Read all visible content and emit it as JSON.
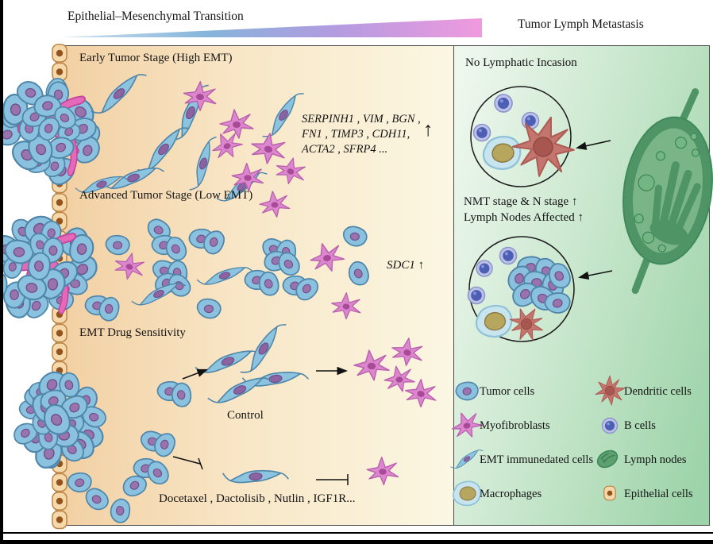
{
  "figure": {
    "emt_axis_title": "Epithelial–Mesenchymal Transition",
    "right_title": "Tumor Lymph Metastasis"
  },
  "left_panel": {
    "early_stage_title": "Early Tumor Stage (High EMT)",
    "gene_lines": [
      "SERPINH1 , VIM , BGN ,",
      "FN1 , TIMP3 , CDH11,",
      "ACTA2 , SFRP4 ..."
    ],
    "gene_arrow": "↑",
    "advanced_stage_title": "Advanced Tumor Stage (Low EMT)",
    "sdc1_gene": "SDC1",
    "sdc1_arrow": "↑",
    "drug_section_title": "EMT Drug Sensitivity",
    "control_label": "Control",
    "drugs_label": "Docetaxel ,  Dactolisib ,  Nutlin ,  IGF1R..."
  },
  "right_panel": {
    "no_invasion_label": "No Lymphatic Incasion",
    "stage_note_line1": "NMT stage & N stage ↑",
    "stage_note_line2": "Lymph Nodes Affected ↑",
    "legend_col1": [
      {
        "label": "Tumor cells"
      },
      {
        "label": "Myofibroblasts"
      },
      {
        "label": "EMT immunedated cells"
      },
      {
        "label": "Macrophages"
      }
    ],
    "legend_col2": [
      {
        "label": "Dendritic cells"
      },
      {
        "label": "B cells"
      },
      {
        "label": "Lymph nodes"
      },
      {
        "label": "Epithelial cells"
      }
    ]
  },
  "colors": {
    "emt_gradient_start": "#cfe2f0",
    "emt_gradient_mid_blue": "#85b4da",
    "emt_gradient_mid_violet": "#b39be0",
    "emt_gradient_end": "#f09ade",
    "left_panel_bg_start": "#f2cfa2",
    "left_panel_bg_end": "#fbf7e3",
    "right_panel_bg_start": "#eef7ee",
    "right_panel_bg_end": "#9cd3a8",
    "tumor_cell_fill": "#8ac1df",
    "emt_spindle_fill": "#8cc4e0",
    "myofibroblast_fill": "#dc87cd",
    "dendritic_cell_fill": "#c4766e",
    "b_cell_fill": "#4c5fb4",
    "macrophage_fill": "#c8e4ee",
    "lymph_node_fill": "#4f9465",
    "epithelial_cell_fill": "#f6d9ab"
  }
}
